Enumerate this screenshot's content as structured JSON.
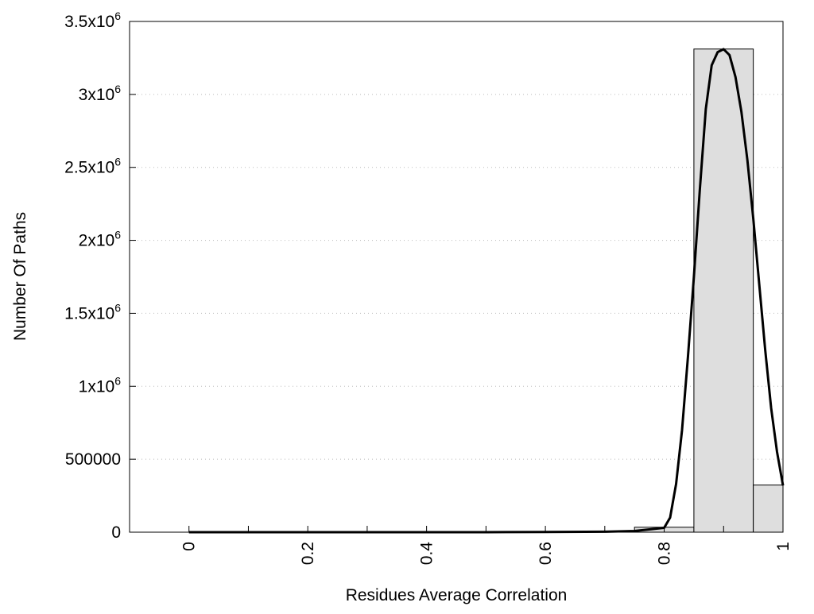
{
  "chart_data": {
    "type": "bar",
    "xlabel": "Residues Average Correlation",
    "ylabel": "Number Of Paths",
    "xlim": [
      -0.1,
      1.0
    ],
    "ylim": [
      0,
      3500000
    ],
    "grid": "y dotted",
    "x_ticks": [
      0,
      0.1,
      0.2,
      0.3,
      0.4,
      0.5,
      0.6,
      0.7,
      0.8,
      0.9,
      1.0
    ],
    "x_tick_labels": [
      {
        "value": 0,
        "label": "0"
      },
      {
        "value": 0.2,
        "label": "0.2"
      },
      {
        "value": 0.4,
        "label": "0.4"
      },
      {
        "value": 0.6,
        "label": "0.6"
      },
      {
        "value": 0.8,
        "label": "0.8"
      },
      {
        "value": 1.0,
        "label": "1"
      }
    ],
    "y_ticks": [
      {
        "value": 0,
        "label": "0",
        "base": "0",
        "exp": ""
      },
      {
        "value": 500000,
        "label": "500000",
        "base": "500000",
        "exp": ""
      },
      {
        "value": 1000000,
        "label": "1x10^6",
        "base": "1x10",
        "exp": "6"
      },
      {
        "value": 1500000,
        "label": "1.5x10^6",
        "base": "1.5x10",
        "exp": "6"
      },
      {
        "value": 2000000,
        "label": "2x10^6",
        "base": "2x10",
        "exp": "6"
      },
      {
        "value": 2500000,
        "label": "2.5x10^6",
        "base": "2.5x10",
        "exp": "6"
      },
      {
        "value": 3000000,
        "label": "3x10^6",
        "base": "3x10",
        "exp": "6"
      },
      {
        "value": 3500000,
        "label": "3.5x10^6",
        "base": "3.5x10",
        "exp": "6"
      }
    ],
    "bars": [
      {
        "x0": 0.75,
        "x1": 0.85,
        "value": 34000
      },
      {
        "x0": 0.85,
        "x1": 0.95,
        "value": 3311000
      },
      {
        "x0": 0.95,
        "x1": 1.0,
        "value": 323000
      }
    ],
    "bar_color": "#dedede",
    "curve": {
      "x": [
        0,
        0.1,
        0.2,
        0.3,
        0.4,
        0.5,
        0.6,
        0.7,
        0.75,
        0.8,
        0.81,
        0.82,
        0.83,
        0.84,
        0.85,
        0.86,
        0.87,
        0.88,
        0.89,
        0.9,
        0.91,
        0.92,
        0.93,
        0.94,
        0.95,
        0.96,
        0.97,
        0.98,
        0.99,
        1.0
      ],
      "y": [
        0,
        0,
        0,
        0,
        0,
        0,
        1000,
        3000,
        8000,
        30000,
        100000,
        330000,
        700000,
        1200000,
        1750000,
        2350000,
        2900000,
        3200000,
        3290000,
        3310000,
        3270000,
        3120000,
        2880000,
        2550000,
        2150000,
        1700000,
        1250000,
        850000,
        550000,
        320000
      ],
      "color": "#000000"
    }
  }
}
